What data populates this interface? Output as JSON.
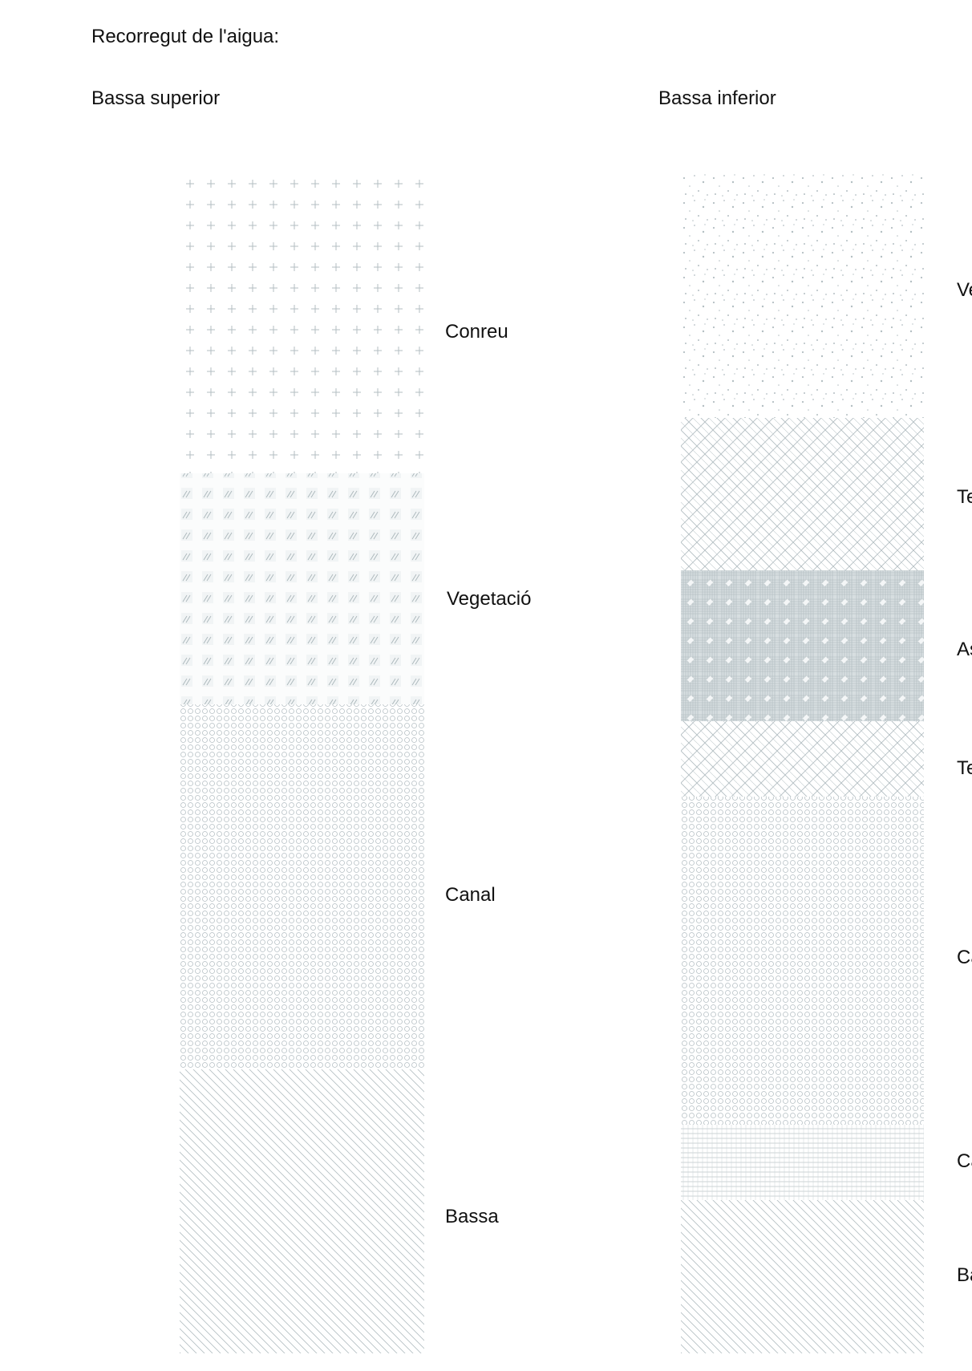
{
  "heading": "Recorregut de l'aigua:",
  "upper": {
    "title": "Bassa superior",
    "bands": [
      {
        "label": "Conreu",
        "pattern": "plus"
      },
      {
        "label": "Vegetació",
        "pattern": "hatch-blocks"
      },
      {
        "label": "Canal",
        "pattern": "circles"
      },
      {
        "label": "Bassa",
        "pattern": "diagonal"
      }
    ]
  },
  "lower": {
    "title": "Bassa inferior",
    "bands": [
      {
        "label": "Ve",
        "pattern": "dots"
      },
      {
        "label": "Te",
        "pattern": "crosshatch"
      },
      {
        "label": "As",
        "pattern": "grid-dense"
      },
      {
        "label": "Te",
        "pattern": "crosshatch"
      },
      {
        "label": "Ca",
        "pattern": "circles"
      },
      {
        "label": "Ca",
        "pattern": "fine-grid"
      },
      {
        "label": "Ba",
        "pattern": "diagonal"
      }
    ]
  },
  "colors": {
    "pattern": "#a8b4b8",
    "text": "#111111"
  }
}
